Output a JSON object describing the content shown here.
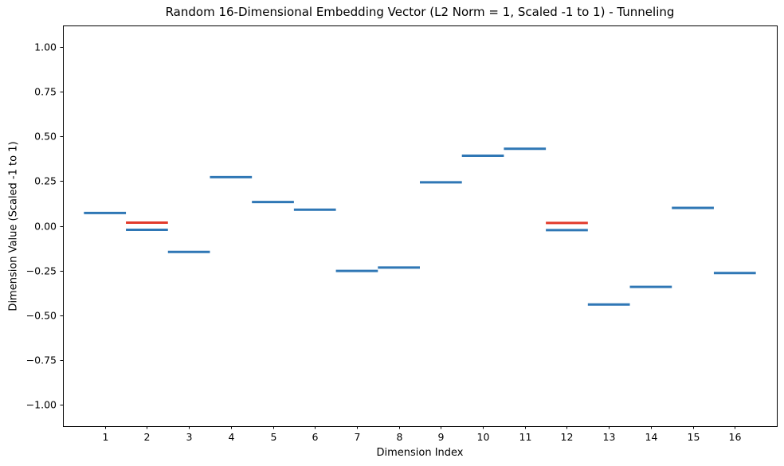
{
  "figure": {
    "background": "#ffffff",
    "spine_color": "#000000",
    "tick_color": "#000000"
  },
  "chart_data": {
    "type": "line",
    "subtype": "horizontal-value-segments (hlines, one per category)",
    "title": "Random 16-Dimensional Embedding Vector (L2 Norm = 1, Scaled -1 to 1) - Tunneling",
    "xlabel": "Dimension Index",
    "ylabel": "Dimension Value (Scaled -1 to 1)",
    "xlim": [
      0,
      17
    ],
    "ylim": [
      -1.12,
      1.12
    ],
    "grid": false,
    "legend": false,
    "segment_halfwidth": 0.5,
    "xticks": [
      {
        "value": 1,
        "label": "1"
      },
      {
        "value": 2,
        "label": "2"
      },
      {
        "value": 3,
        "label": "3"
      },
      {
        "value": 4,
        "label": "4"
      },
      {
        "value": 5,
        "label": "5"
      },
      {
        "value": 6,
        "label": "6"
      },
      {
        "value": 7,
        "label": "7"
      },
      {
        "value": 8,
        "label": "8"
      },
      {
        "value": 9,
        "label": "9"
      },
      {
        "value": 10,
        "label": "10"
      },
      {
        "value": 11,
        "label": "11"
      },
      {
        "value": 12,
        "label": "12"
      },
      {
        "value": 13,
        "label": "13"
      },
      {
        "value": 14,
        "label": "14"
      },
      {
        "value": 15,
        "label": "15"
      },
      {
        "value": 16,
        "label": "16"
      }
    ],
    "yticks": [
      {
        "value": 1.0,
        "label": "1.00"
      },
      {
        "value": 0.75,
        "label": "0.75"
      },
      {
        "value": 0.5,
        "label": "0.50"
      },
      {
        "value": 0.25,
        "label": "0.25"
      },
      {
        "value": 0.0,
        "label": "0.00"
      },
      {
        "value": -0.25,
        "label": "−0.25"
      },
      {
        "value": -0.5,
        "label": "−0.50"
      },
      {
        "value": -0.75,
        "label": "−0.75"
      },
      {
        "value": -1.0,
        "label": "−1.00"
      }
    ],
    "series": [
      {
        "name": "embedding_values",
        "color": "#2f77b5",
        "linewidth": 3,
        "x": [
          1,
          2,
          3,
          4,
          5,
          6,
          7,
          8,
          9,
          10,
          11,
          12,
          13,
          14,
          15,
          16
        ],
        "values": [
          0.072,
          -0.022,
          -0.146,
          0.272,
          0.133,
          0.09,
          -0.252,
          -0.233,
          0.243,
          0.392,
          0.431,
          -0.024,
          -0.44,
          -0.341,
          0.1,
          -0.264
        ]
      },
      {
        "name": "tunneling_marks",
        "color": "#e23a2b",
        "linewidth": 3,
        "x": [
          2,
          12
        ],
        "values": [
          0.018,
          0.016
        ]
      }
    ]
  }
}
